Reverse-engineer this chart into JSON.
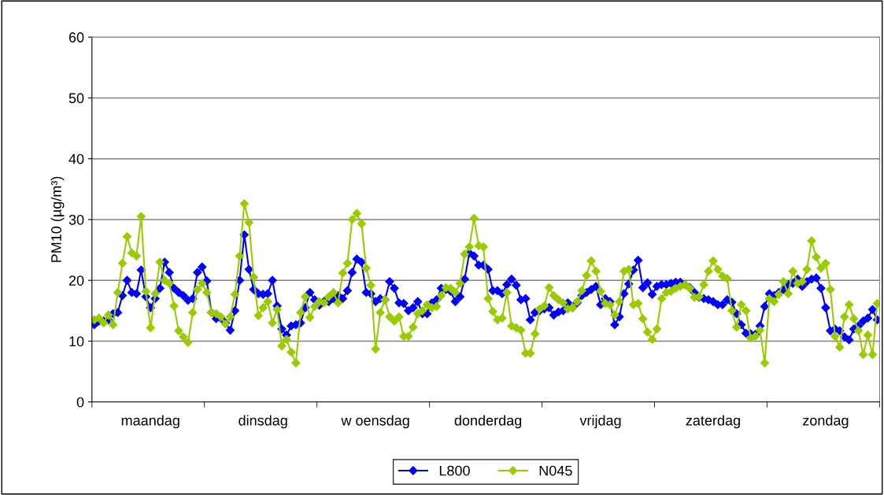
{
  "chart_data": {
    "type": "line",
    "ylabel": "PM10 (µg/m³)",
    "ylim": [
      0,
      60
    ],
    "yticks": [
      0,
      10,
      20,
      30,
      40,
      50,
      60
    ],
    "grid": "y",
    "legend": "bottom",
    "marker": "diamond",
    "line_style": "solid",
    "categories": [
      null,
      null,
      null,
      null,
      null,
      null,
      null,
      null,
      null,
      null,
      null,
      null,
      "maandag",
      null,
      null,
      null,
      null,
      null,
      null,
      null,
      null,
      null,
      null,
      null,
      null,
      null,
      null,
      null,
      null,
      null,
      null,
      null,
      null,
      null,
      null,
      null,
      "dinsdag",
      null,
      null,
      null,
      null,
      null,
      null,
      null,
      null,
      null,
      null,
      null,
      null,
      null,
      null,
      null,
      null,
      null,
      null,
      null,
      null,
      null,
      null,
      null,
      "w oensdag",
      null,
      null,
      null,
      null,
      null,
      null,
      null,
      null,
      null,
      null,
      null,
      null,
      null,
      null,
      null,
      null,
      null,
      null,
      null,
      null,
      null,
      null,
      null,
      "donderdag",
      null,
      null,
      null,
      null,
      null,
      null,
      null,
      null,
      null,
      null,
      null,
      null,
      null,
      null,
      null,
      null,
      null,
      null,
      null,
      null,
      null,
      null,
      null,
      "vrijdag",
      null,
      null,
      null,
      null,
      null,
      null,
      null,
      null,
      null,
      null,
      null,
      null,
      null,
      null,
      null,
      null,
      null,
      null,
      null,
      null,
      null,
      null,
      null,
      "zaterdag",
      null,
      null,
      null,
      null,
      null,
      null,
      null,
      null,
      null,
      null,
      null,
      null,
      null,
      null,
      null,
      null,
      null,
      null,
      null,
      null,
      null,
      null,
      null,
      "zondag",
      null,
      null,
      null,
      null,
      null,
      null,
      null,
      null,
      null,
      null,
      null
    ],
    "series": [
      {
        "name": "L800",
        "color": "#0000ff",
        "values": [
          12.7,
          13.3,
          13.3,
          13.5,
          14.5,
          14.7,
          17.5,
          20,
          18,
          17.8,
          21.7,
          17.3,
          15.5,
          17,
          18.7,
          23,
          21.3,
          18.7,
          18,
          17.5,
          16.7,
          17,
          21.3,
          22.2,
          19.9,
          14.7,
          13.7,
          13.8,
          13,
          11.8,
          15,
          20,
          27.5,
          21.8,
          18.5,
          17.8,
          17.7,
          17.8,
          20,
          15.8,
          12,
          11,
          12.5,
          12.7,
          13,
          15.5,
          18,
          16.8,
          15.9,
          16.5,
          16.5,
          17,
          17.5,
          17,
          18.3,
          21.3,
          23.5,
          23,
          18,
          17.8,
          16.5,
          17,
          16.8,
          19.8,
          18.7,
          16.3,
          16.2,
          15,
          15.5,
          16.5,
          14.5,
          14.5,
          16.3,
          16.8,
          18.7,
          18.5,
          18.2,
          16.5,
          17.3,
          20.2,
          24.5,
          24,
          22.5,
          22.5,
          21.8,
          18.3,
          18.3,
          17.8,
          19.3,
          20.2,
          19.2,
          16.8,
          17,
          13.5,
          14.7,
          15,
          15.3,
          15.5,
          14.3,
          14.8,
          15,
          16.3,
          15.5,
          16.3,
          17.5,
          18,
          18.5,
          19,
          16,
          17,
          16.5,
          12.7,
          14,
          17.8,
          19.4,
          21.7,
          23.3,
          18.8,
          19.6,
          17.7,
          19,
          19.3,
          19.3,
          19.5,
          19.7,
          19.7,
          19.3,
          18.8,
          18,
          17.2,
          17,
          16.8,
          16.5,
          16,
          16,
          16.8,
          16.4,
          14.5,
          12.7,
          11.3,
          11.2,
          11.1,
          12.5,
          15.7,
          17.8,
          17.5,
          18,
          18.5,
          19.3,
          19.5,
          20.2,
          19,
          19.8,
          20.2,
          20.4,
          18.7,
          15.5,
          11.7,
          12,
          11.7,
          10.7,
          10.2,
          12,
          12.5,
          13.3,
          13.8,
          15.2,
          13.5
        ]
      },
      {
        "name": "N045",
        "color": "#99cc00",
        "values": [
          13.5,
          13.8,
          13,
          14.3,
          12.7,
          18,
          22.8,
          27.2,
          24.5,
          24,
          30.5,
          18.2,
          12.2,
          17.8,
          23,
          20,
          19.5,
          15.8,
          11.7,
          10.7,
          9.8,
          14.7,
          18.5,
          19.5,
          18,
          14.7,
          14.5,
          14,
          12.8,
          14,
          17.7,
          24,
          32.6,
          29.5,
          20.5,
          14.2,
          15.5,
          16.5,
          13,
          15.2,
          9.2,
          10.3,
          8.2,
          6.4,
          14.7,
          17.3,
          13.9,
          15.7,
          16.5,
          16.3,
          17.3,
          18,
          16.3,
          21.2,
          22.8,
          30,
          31,
          29.3,
          22,
          19.2,
          8.7,
          14.7,
          16.8,
          14,
          13.3,
          14,
          10.8,
          10.8,
          12.3,
          14.5,
          15,
          16,
          15.5,
          15.7,
          17.5,
          18.8,
          18.7,
          18,
          19.5,
          24.3,
          25.5,
          30.2,
          25.7,
          25.5,
          17,
          14.9,
          13.5,
          13.8,
          18,
          12.5,
          12.2,
          11.8,
          8,
          8,
          11.2,
          15.3,
          15.8,
          18.8,
          17.5,
          16.8,
          16.3,
          15.3,
          15.5,
          16.5,
          18.3,
          20.8,
          23.2,
          21.5,
          18.2,
          16.2,
          16,
          14.3,
          16.5,
          21.5,
          21.8,
          16,
          16.2,
          13.7,
          11.5,
          10.3,
          12,
          17,
          18,
          18.2,
          18.7,
          19,
          19.3,
          18.7,
          17.2,
          17.3,
          19.3,
          21.5,
          23.2,
          21.8,
          20.7,
          20.3,
          15,
          12.3,
          16,
          15,
          10.5,
          10.8,
          11.8,
          6.4,
          17,
          16.5,
          17.7,
          19.8,
          17.8,
          21.5,
          19.5,
          19.8,
          21.8,
          26.5,
          23.8,
          22,
          22.8,
          18.5,
          10.8,
          9,
          14,
          16,
          13.7,
          11.7,
          7.8,
          11,
          7.8,
          16.2
        ]
      }
    ]
  }
}
